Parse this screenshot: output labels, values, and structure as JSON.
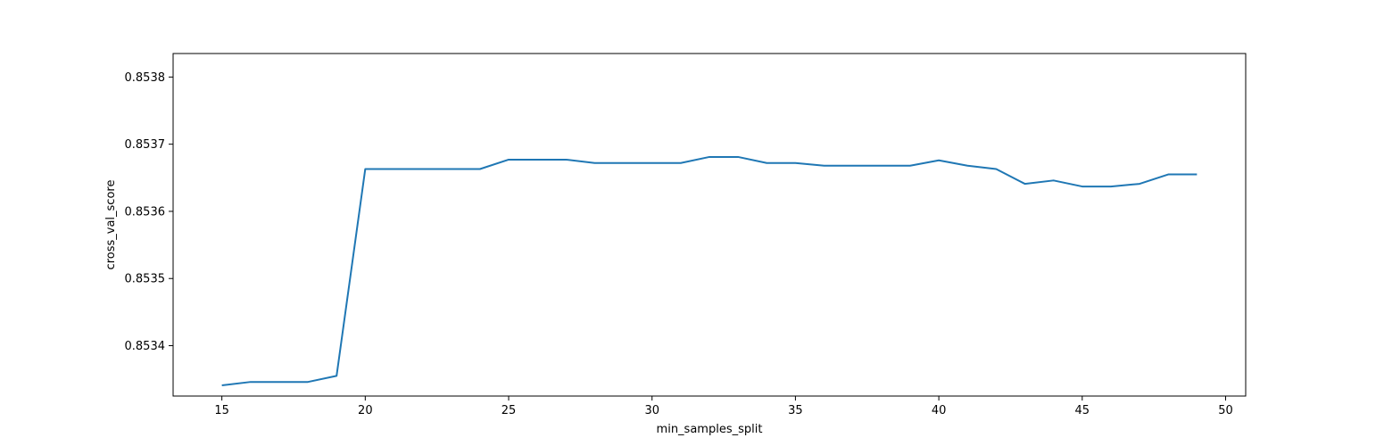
{
  "chart_data": {
    "type": "line",
    "title": "",
    "xlabel": "min_samples_split",
    "ylabel": "cross_val_score",
    "xlim": [
      13.3,
      50.7
    ],
    "ylim": [
      0.853325,
      0.853835
    ],
    "xticks": [
      15,
      20,
      25,
      30,
      35,
      40,
      45,
      50
    ],
    "xtick_labels": [
      "15",
      "20",
      "25",
      "30",
      "35",
      "40",
      "45",
      "50"
    ],
    "yticks": [
      0.8534,
      0.8535,
      0.8536,
      0.8537,
      0.8538
    ],
    "ytick_labels": [
      "0.8534",
      "0.8535",
      "0.8536",
      "0.8537",
      "0.8538"
    ],
    "grid": false,
    "series": [
      {
        "color": "#1f77b4",
        "x": [
          15,
          16,
          17,
          18,
          19,
          20,
          21,
          22,
          23,
          24,
          25,
          26,
          27,
          28,
          29,
          30,
          31,
          32,
          33,
          34,
          35,
          36,
          37,
          38,
          39,
          40,
          41,
          42,
          43,
          44,
          45,
          46,
          47,
          48,
          49
        ],
        "y": [
          0.853341,
          0.853346,
          0.853346,
          0.853346,
          0.853355,
          0.853663,
          0.853663,
          0.853663,
          0.853663,
          0.853663,
          0.853677,
          0.853677,
          0.853677,
          0.853672,
          0.853672,
          0.853672,
          0.853672,
          0.853681,
          0.853681,
          0.853672,
          0.853672,
          0.853668,
          0.853668,
          0.853668,
          0.853668,
          0.853676,
          0.853668,
          0.853663,
          0.853641,
          0.853646,
          0.853637,
          0.853637,
          0.853641,
          0.853655,
          0.853655
        ]
      }
    ]
  }
}
